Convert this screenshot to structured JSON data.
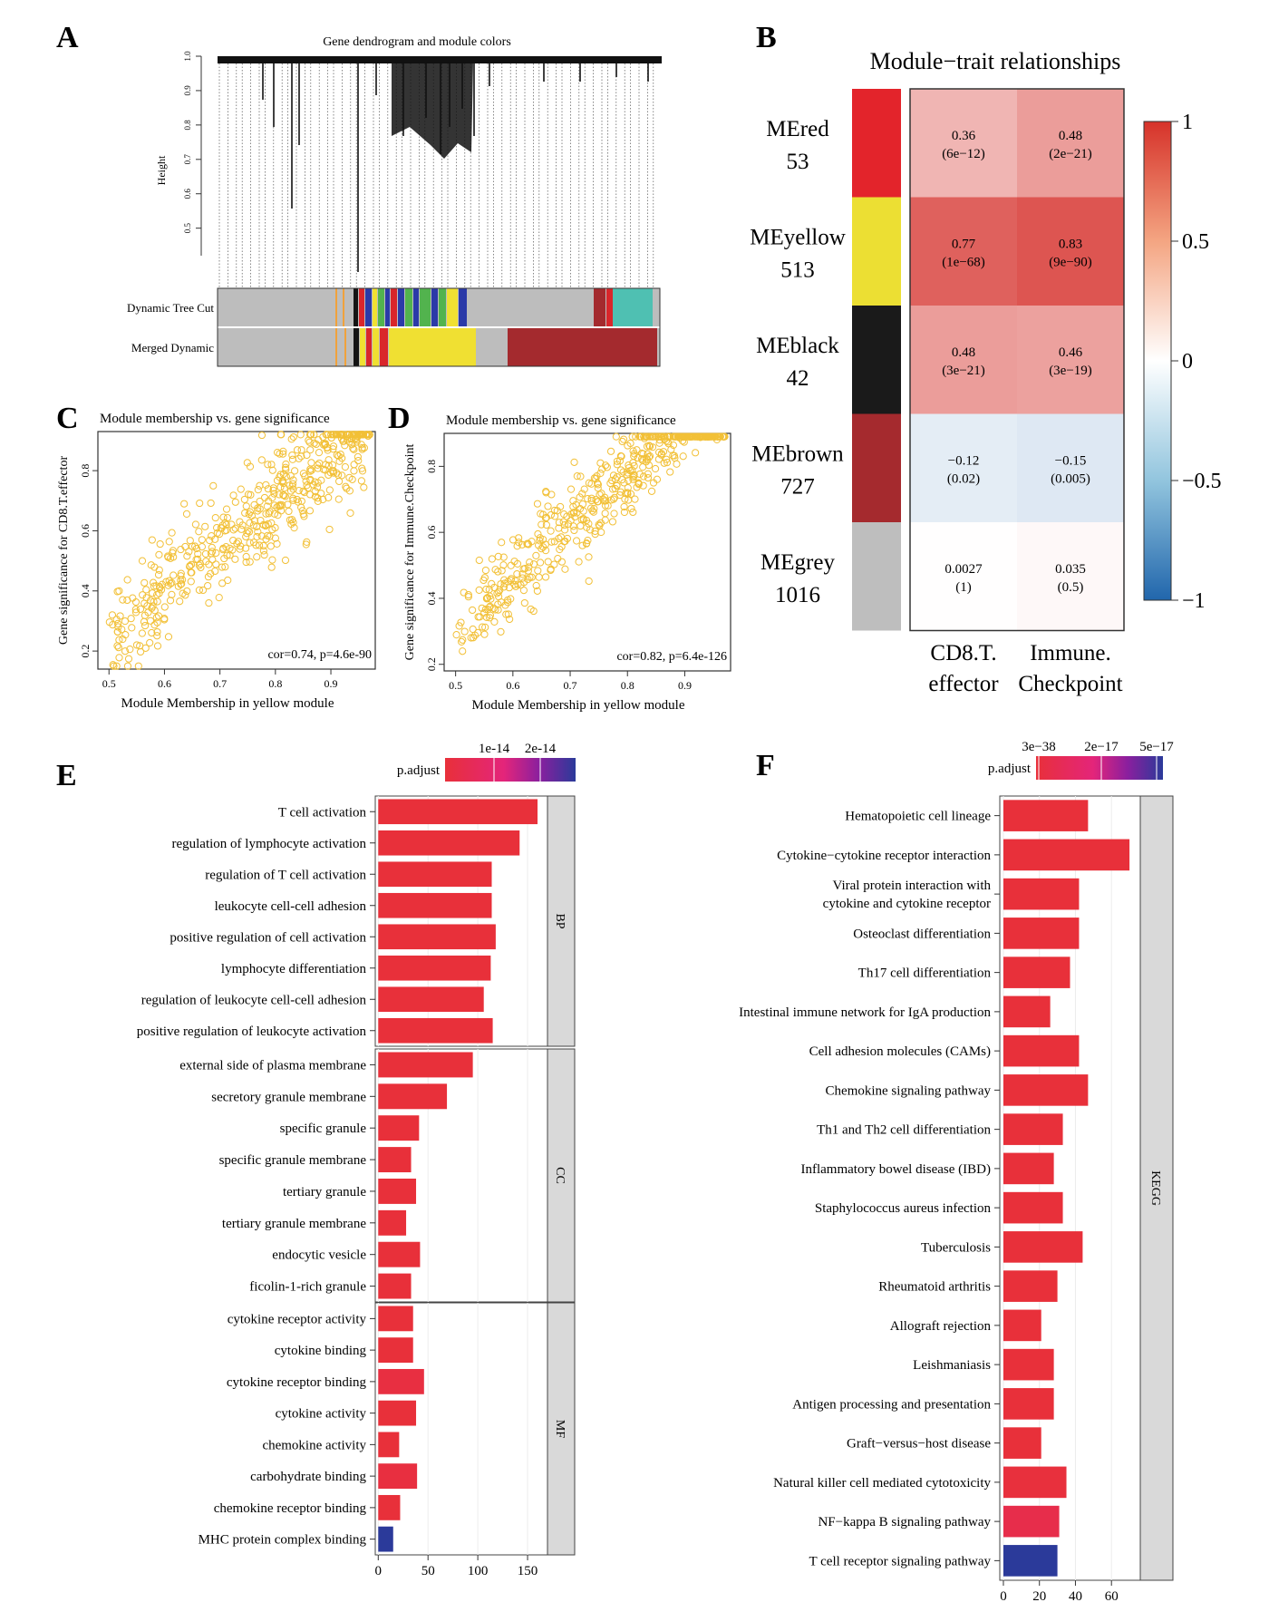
{
  "panel_letters": [
    "A",
    "B",
    "C",
    "D",
    "E",
    "F"
  ],
  "chart_data": [
    {
      "panel": "A",
      "type": "other",
      "title": "Gene dendrogram and module colors",
      "ylabel": "Height",
      "yticks": [
        "1.0",
        "0.9",
        "0.8",
        "0.7",
        "0.6",
        "0.5"
      ],
      "ylim": [
        0.42,
        1.0
      ],
      "row_labels": [
        "Dynamic Tree Cut",
        "Merged Dynamic"
      ],
      "colors": {
        "grey": "#bdbdbd",
        "black": "#141414",
        "red": "#d9262b",
        "yellow": "#f0e032",
        "brown": "#a42a2e",
        "blue": "#2b3aa8",
        "green": "#52b34e",
        "turquoise": "#4fc0b2",
        "orange": "#f0a23c"
      }
    },
    {
      "panel": "B",
      "type": "heatmap",
      "title": "Module−trait relationships",
      "rows": [
        {
          "module": "MEred",
          "count": "53",
          "color": "#e3242b"
        },
        {
          "module": "MEyellow",
          "count": "513",
          "color": "#ecdf33"
        },
        {
          "module": "MEblack",
          "count": "42",
          "color": "#1a1a1a"
        },
        {
          "module": "MEbrown",
          "count": "727",
          "color": "#a52a2e"
        },
        {
          "module": "MEgrey",
          "count": "1016",
          "color": "#bebebe"
        }
      ],
      "columns": [
        "CD8.T.\neffector",
        "Immune.\nCheckpoint"
      ],
      "cor": [
        [
          0.36,
          0.48
        ],
        [
          0.77,
          0.83
        ],
        [
          0.48,
          0.46
        ],
        [
          -0.12,
          -0.15
        ],
        [
          0.0027,
          0.035
        ]
      ],
      "cor_labels": [
        [
          "0.36",
          "0.48"
        ],
        [
          "0.77",
          "0.83"
        ],
        [
          "0.48",
          "0.46"
        ],
        [
          "−0.12",
          "−0.15"
        ],
        [
          "0.0027",
          "0.035"
        ]
      ],
      "p_labels": [
        [
          "(6e−12)",
          "(2e−21)"
        ],
        [
          "(1e−68)",
          "(9e−90)"
        ],
        [
          "(3e−21)",
          "(3e−19)"
        ],
        [
          "(0.02)",
          "(0.005)"
        ],
        [
          "(1)",
          "(0.5)"
        ]
      ],
      "colorbar_ticks": [
        "1",
        "0.5",
        "0",
        "−0.5",
        "−1"
      ],
      "colorbar_range": [
        -1,
        1
      ]
    },
    {
      "panel": "C",
      "type": "scatter",
      "title": "Module membership vs. gene significance",
      "xlabel": "Module Membership in yellow module",
      "ylabel": "Gene significance for CD8.T.effector",
      "annotation": "cor=0.74, p=4.6e-90",
      "xticks": [
        "0.5",
        "0.6",
        "0.7",
        "0.8",
        "0.9"
      ],
      "yticks": [
        "0.2",
        "0.4",
        "0.6",
        "0.8"
      ],
      "xlim": [
        0.48,
        0.98
      ],
      "ylim": [
        0.14,
        0.93
      ],
      "point_count": 513,
      "cor": 0.74,
      "color": "#f2c037"
    },
    {
      "panel": "D",
      "type": "scatter",
      "title": "Module membership vs. gene significance",
      "xlabel": "Module Membership in yellow module",
      "ylabel": "Gene significance for Immune.Checkpoint",
      "annotation": "cor=0.82, p=6.4e-126",
      "xticks": [
        "0.5",
        "0.6",
        "0.7",
        "0.8",
        "0.9"
      ],
      "yticks": [
        "0.2",
        "0.4",
        "0.6",
        "0.8"
      ],
      "xlim": [
        0.48,
        0.98
      ],
      "ylim": [
        0.18,
        0.9
      ],
      "point_count": 513,
      "cor": 0.82,
      "color": "#f2c037"
    },
    {
      "panel": "E",
      "type": "bar",
      "orientation": "horizontal",
      "legend_title": "p.adjust",
      "legend_ticks": [
        "1e-14",
        "2e-14"
      ],
      "xticks": [
        "0",
        "50",
        "100",
        "150"
      ],
      "xlim": [
        -3,
        170
      ],
      "groups": [
        {
          "name": "BP",
          "categories": [
            "T cell activation",
            "regulation of lymphocyte activation",
            "regulation of T cell activation",
            "leukocyte cell-cell adhesion",
            "positive regulation of cell activation",
            "lymphocyte differentiation",
            "regulation of leukocyte cell-cell adhesion",
            "positive regulation of leukocyte activation"
          ],
          "values": [
            160,
            142,
            114,
            114,
            118,
            113,
            106,
            115
          ],
          "p_adjust_level": [
            0,
            0,
            0,
            0,
            0,
            0,
            0,
            0
          ]
        },
        {
          "name": "CC",
          "categories": [
            "external side of plasma membrane",
            "secretory granule membrane",
            "specific granule",
            "specific granule membrane",
            "tertiary granule",
            "tertiary granule membrane",
            "endocytic vesicle",
            "ficolin-1-rich granule"
          ],
          "values": [
            95,
            69,
            41,
            33,
            38,
            28,
            42,
            33
          ],
          "p_adjust_level": [
            0,
            0,
            0,
            0,
            0,
            0,
            0,
            0
          ]
        },
        {
          "name": "MF",
          "categories": [
            "cytokine receptor activity",
            "cytokine binding",
            "cytokine receptor binding",
            "cytokine activity",
            "chemokine activity",
            "carbohydrate binding",
            "chemokine receptor binding",
            "MHC protein complex binding"
          ],
          "values": [
            35,
            35,
            46,
            38,
            21,
            39,
            22,
            15
          ],
          "p_adjust_level": [
            0,
            0,
            0.05,
            0,
            0,
            0.04,
            0,
            1
          ]
        }
      ]
    },
    {
      "panel": "F",
      "type": "bar",
      "orientation": "horizontal",
      "legend_title": "p.adjust",
      "legend_ticks": [
        "3e−38",
        "2e−17",
        "5e−17"
      ],
      "xticks": [
        "0",
        "20",
        "40",
        "60"
      ],
      "xlim": [
        -2,
        76
      ],
      "groups": [
        {
          "name": "KEGG",
          "categories": [
            "Hematopoietic cell lineage",
            "Cytokine−cytokine receptor interaction",
            "Viral protein interaction with\ncytokine and cytokine receptor",
            "Osteoclast differentiation",
            "Th17 cell differentiation",
            "Intestinal immune network for IgA production",
            "Cell adhesion molecules (CAMs)",
            "Chemokine signaling pathway",
            "Th1 and Th2 cell differentiation",
            "Inflammatory bowel disease (IBD)",
            "Staphylococcus aureus infection",
            "Tuberculosis",
            "Rheumatoid arthritis",
            "Allograft rejection",
            "Leishmaniasis",
            "Antigen processing and presentation",
            "Graft−versus−host disease",
            "Natural killer cell mediated cytotoxicity",
            "NF−kappa B signaling pathway",
            "T cell receptor signaling pathway"
          ],
          "values": [
            47,
            70,
            42,
            42,
            37,
            26,
            42,
            47,
            33,
            28,
            33,
            44,
            30,
            21,
            28,
            28,
            21,
            35,
            31,
            30
          ],
          "p_adjust_level": [
            0,
            0,
            0,
            0,
            0,
            0,
            0,
            0,
            0,
            0,
            0,
            0,
            0,
            0,
            0,
            0,
            0,
            0.02,
            0.12,
            1
          ]
        }
      ]
    }
  ]
}
